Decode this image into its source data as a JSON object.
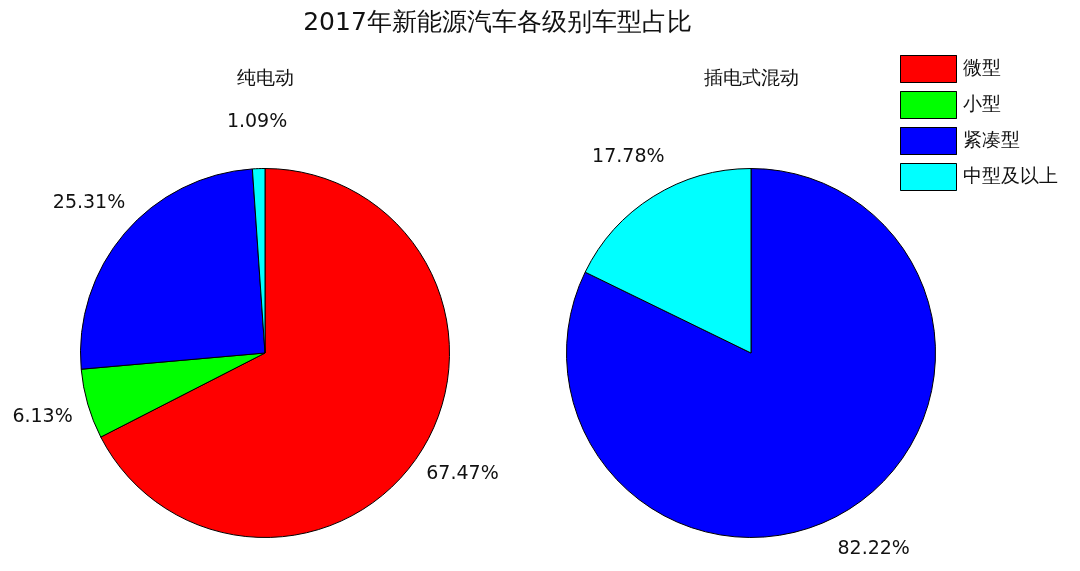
{
  "chart_data": {
    "type": "pie",
    "title": "2017年新能源汽车各级别车型占比",
    "categories": [
      "微型",
      "小型",
      "紧凑型",
      "中型及以上"
    ],
    "colors": [
      "#ff0000",
      "#00ff00",
      "#0000ff",
      "#00ffff"
    ],
    "legend": "top right",
    "series": [
      {
        "name": "纯电动",
        "values": [
          67.47,
          6.13,
          25.31,
          1.09
        ],
        "value_labels": [
          "67.47%",
          "6.13%",
          "25.31%",
          "1.09%"
        ]
      },
      {
        "name": "插电式混动",
        "values": [
          0,
          0,
          82.22,
          17.78
        ],
        "value_labels": [
          null,
          null,
          "82.22%",
          "17.78%"
        ]
      }
    ]
  }
}
